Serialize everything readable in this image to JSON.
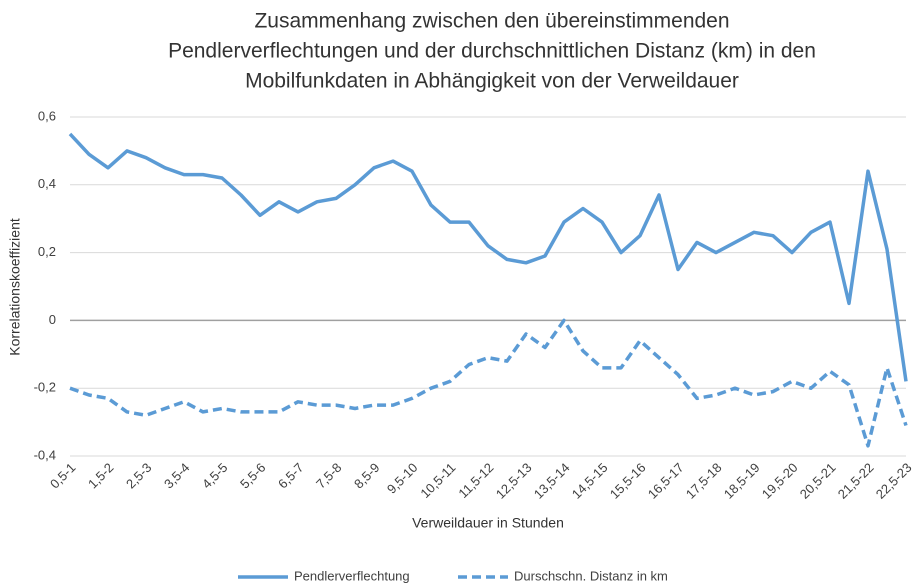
{
  "chart_data": {
    "type": "line",
    "title": [
      "Zusammenhang zwischen den übereinstimmenden",
      "Pendlerverflechtungen und der durchschnittlichen Distanz (km) in den",
      "Mobilfunkdaten in Abhängigkeit von der Verweildauer"
    ],
    "x_label": "Verweildauer in Stunden",
    "y_label": "Korrelationskoeffizient",
    "categories": [
      "0,5-1",
      null,
      "1,5-2",
      null,
      "2,5-3",
      null,
      "3,5-4",
      null,
      "4,5-5",
      null,
      "5,5-6",
      null,
      "6,5-7",
      null,
      "7,5-8",
      null,
      "8,5-9",
      null,
      "9,5-10",
      null,
      "10,5-11",
      null,
      "11,5-12",
      null,
      "12,5-13",
      null,
      "13,5-14",
      null,
      "14,5-15",
      null,
      "15,5-16",
      null,
      "16,5-17",
      null,
      "17,5-18",
      null,
      "18,5-19",
      null,
      "19,5-20",
      null,
      "20,5-21",
      null,
      "21,5-22",
      null,
      "22,5-23"
    ],
    "series": [
      {
        "name": "Pendlerverflechtung",
        "color": "#5b9bd5",
        "dash": false,
        "values": [
          0.55,
          0.49,
          0.45,
          0.5,
          0.48,
          0.45,
          0.43,
          0.43,
          0.42,
          0.37,
          0.31,
          0.35,
          0.32,
          0.35,
          0.36,
          0.4,
          0.45,
          0.47,
          0.44,
          0.34,
          0.29,
          0.29,
          0.22,
          0.18,
          0.17,
          0.19,
          0.29,
          0.33,
          0.29,
          0.2,
          0.25,
          0.37,
          0.15,
          0.23,
          0.2,
          0.23,
          0.26,
          0.25,
          0.2,
          0.26,
          0.29,
          0.05,
          0.44,
          0.21,
          -0.18
        ]
      },
      {
        "name": "Durschschn. Distanz in km",
        "color": "#5b9bd5",
        "dash": true,
        "values": [
          -0.2,
          -0.22,
          -0.23,
          -0.27,
          -0.28,
          -0.26,
          -0.24,
          -0.27,
          -0.26,
          -0.27,
          -0.27,
          -0.27,
          -0.24,
          -0.25,
          -0.25,
          -0.26,
          -0.25,
          -0.25,
          -0.23,
          -0.2,
          -0.18,
          -0.13,
          -0.11,
          -0.12,
          -0.04,
          -0.08,
          0,
          -0.09,
          -0.14,
          -0.14,
          -0.06,
          -0.11,
          -0.16,
          -0.23,
          -0.22,
          -0.2,
          -0.22,
          -0.21,
          -0.18,
          -0.2,
          -0.15,
          -0.19,
          -0.37,
          -0.14,
          -0.31
        ]
      }
    ],
    "ylim": [
      -0.4,
      0.6
    ],
    "yticks": [
      {
        "value": -0.4,
        "label": "-0,4"
      },
      {
        "value": -0.2,
        "label": "-0,2"
      },
      0,
      {
        "value": 0.2,
        "label": "0,2"
      },
      {
        "value": 0.4,
        "label": "0,4"
      },
      {
        "value": 0.6,
        "label": "0,6"
      }
    ],
    "grid": true,
    "legend": "bottom"
  }
}
